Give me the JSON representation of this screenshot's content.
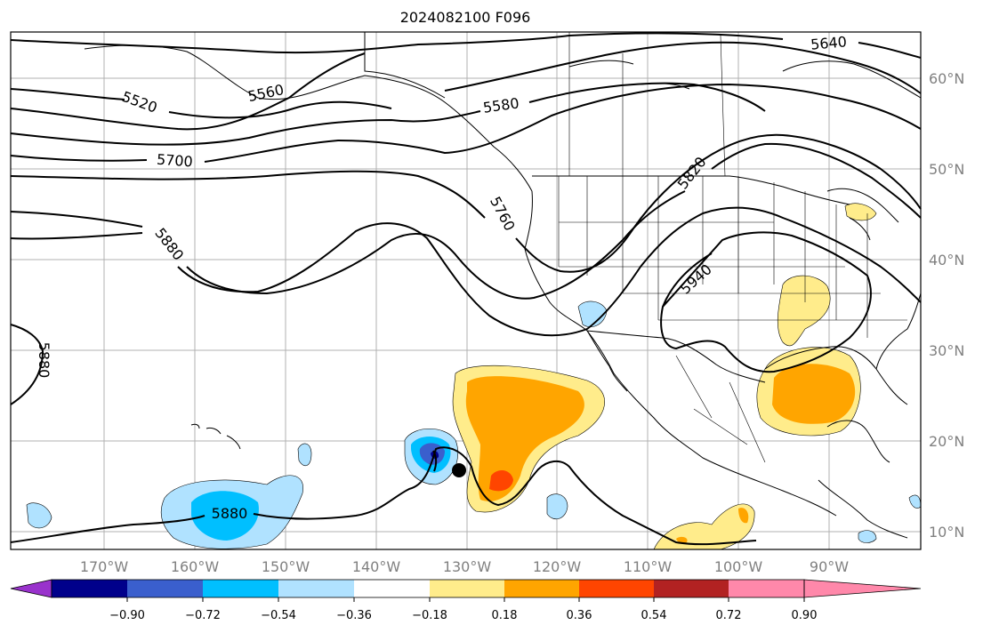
{
  "title": "2024082100 F096",
  "map": {
    "lon_labels": [
      "170°W",
      "160°W",
      "150°W",
      "140°W",
      "130°W",
      "120°W",
      "110°W",
      "100°W",
      "90°W"
    ],
    "lat_labels": [
      "10°N",
      "20°N",
      "30°N",
      "40°N",
      "50°N",
      "60°N"
    ]
  },
  "contours": {
    "labels": [
      "5520",
      "5560",
      "5580",
      "5640",
      "5700",
      "5760",
      "5820",
      "5880",
      "5880",
      "5880",
      "5940"
    ]
  },
  "colorbar": {
    "ticks": [
      "−0.90",
      "−0.72",
      "−0.54",
      "−0.36",
      "−0.18",
      "0.18",
      "0.36",
      "0.54",
      "0.72",
      "0.90"
    ],
    "colors": [
      "#9932cc",
      "#00008b",
      "#3a5fcd",
      "#00bfff",
      "#b0e2ff",
      "#ffffff",
      "#ffec8b",
      "#ffa500",
      "#ff4500",
      "#b22222",
      "#ff88aa"
    ]
  },
  "marker": {
    "type": "filled-circle",
    "color": "#000000"
  }
}
